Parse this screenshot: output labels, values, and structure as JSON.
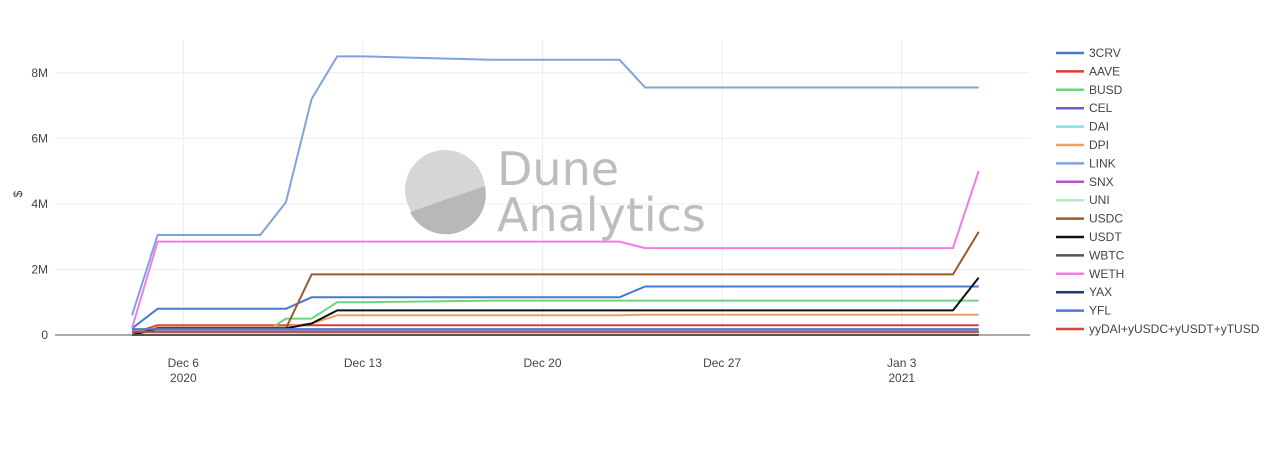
{
  "chart_data": {
    "type": "line",
    "title": "",
    "xlabel": "",
    "ylabel": "$",
    "ylim": [
      0,
      9000000
    ],
    "yticks": [
      0,
      2000000,
      4000000,
      6000000,
      8000000
    ],
    "ytick_labels": [
      "0",
      "2M",
      "4M",
      "6M",
      "8M"
    ],
    "x_ticks": [
      {
        "date": "2020-12-06",
        "label": "Dec 6",
        "sub": "2020"
      },
      {
        "date": "2020-12-13",
        "label": "Dec 13",
        "sub": ""
      },
      {
        "date": "2020-12-20",
        "label": "Dec 20",
        "sub": ""
      },
      {
        "date": "2020-12-27",
        "label": "Dec 27",
        "sub": ""
      },
      {
        "date": "2021-01-03",
        "label": "Jan 3",
        "sub": "2021"
      }
    ],
    "x_range": [
      "2020-12-01",
      "2021-01-08"
    ],
    "grid": true,
    "legend_position": "right",
    "watermark": [
      "Dune",
      "Analytics"
    ],
    "x": [
      "2020-12-04",
      "2020-12-05",
      "2020-12-09",
      "2020-12-10",
      "2020-12-11",
      "2020-12-12",
      "2020-12-13",
      "2020-12-18",
      "2020-12-19",
      "2020-12-23",
      "2020-12-24",
      "2021-01-05",
      "2021-01-06"
    ],
    "series": [
      {
        "name": "3CRV",
        "color": "#4878d0",
        "values": [
          200000,
          800000,
          800000,
          800000,
          1150000,
          1150000,
          1150000,
          1150000,
          1150000,
          1150000,
          1480000,
          1480000,
          1480000
        ]
      },
      {
        "name": "AAVE",
        "color": "#e03b33",
        "values": [
          50000,
          300000,
          300000,
          300000,
          300000,
          300000,
          300000,
          300000,
          300000,
          300000,
          300000,
          300000,
          300000
        ]
      },
      {
        "name": "BUSD",
        "color": "#6bd67c",
        "values": [
          0,
          0,
          0,
          500000,
          500000,
          1000000,
          1000000,
          1050000,
          1050000,
          1050000,
          1050000,
          1050000,
          1050000
        ]
      },
      {
        "name": "CEL",
        "color": "#6a5ccf",
        "values": [
          20000,
          20000,
          20000,
          20000,
          20000,
          20000,
          20000,
          20000,
          20000,
          20000,
          20000,
          20000,
          20000
        ]
      },
      {
        "name": "DAI",
        "color": "#86e0e8",
        "values": [
          150000,
          150000,
          150000,
          150000,
          150000,
          150000,
          150000,
          150000,
          150000,
          150000,
          150000,
          150000,
          150000
        ]
      },
      {
        "name": "DPI",
        "color": "#eea06a",
        "values": [
          0,
          250000,
          250000,
          250000,
          350000,
          600000,
          600000,
          600000,
          600000,
          600000,
          620000,
          620000,
          620000
        ]
      },
      {
        "name": "LINK",
        "color": "#7ea4de",
        "values": [
          600000,
          3050000,
          3050000,
          4050000,
          7200000,
          8500000,
          8500000,
          8400000,
          8400000,
          8400000,
          7550000,
          7550000,
          7550000
        ]
      },
      {
        "name": "SNX",
        "color": "#b551cf",
        "values": [
          100000,
          100000,
          100000,
          100000,
          100000,
          100000,
          100000,
          100000,
          100000,
          100000,
          100000,
          100000,
          100000
        ]
      },
      {
        "name": "UNI",
        "color": "#a8f0c8",
        "values": [
          50000,
          50000,
          50000,
          50000,
          50000,
          50000,
          50000,
          50000,
          50000,
          50000,
          50000,
          50000,
          50000
        ]
      },
      {
        "name": "USDC",
        "color": "#9c5a2e",
        "values": [
          0,
          200000,
          200000,
          200000,
          1850000,
          1850000,
          1850000,
          1850000,
          1850000,
          1850000,
          1850000,
          1850000,
          3150000
        ]
      },
      {
        "name": "USDT",
        "color": "#111111",
        "values": [
          0,
          200000,
          200000,
          200000,
          350000,
          750000,
          750000,
          750000,
          750000,
          750000,
          750000,
          750000,
          1750000
        ]
      },
      {
        "name": "WBTC",
        "color": "#555555",
        "values": [
          0,
          0,
          0,
          0,
          0,
          0,
          0,
          0,
          0,
          0,
          0,
          0,
          0
        ]
      },
      {
        "name": "WETH",
        "color": "#f07ce6",
        "values": [
          200000,
          2850000,
          2850000,
          2850000,
          2850000,
          2850000,
          2850000,
          2850000,
          2850000,
          2850000,
          2650000,
          2650000,
          5000000
        ]
      },
      {
        "name": "YAX",
        "color": "#1f3a7a",
        "values": [
          100000,
          100000,
          100000,
          100000,
          100000,
          100000,
          100000,
          100000,
          100000,
          100000,
          100000,
          100000,
          100000
        ]
      },
      {
        "name": "YFL",
        "color": "#4d7ad6",
        "values": [
          180000,
          180000,
          180000,
          180000,
          180000,
          180000,
          180000,
          180000,
          180000,
          180000,
          180000,
          180000,
          180000
        ]
      },
      {
        "name": "yyDAI+yUSDC+yUSDT+yTUSD",
        "color": "#d6453d",
        "values": [
          100000,
          100000,
          100000,
          100000,
          100000,
          100000,
          100000,
          100000,
          100000,
          100000,
          100000,
          100000,
          100000
        ]
      }
    ]
  }
}
